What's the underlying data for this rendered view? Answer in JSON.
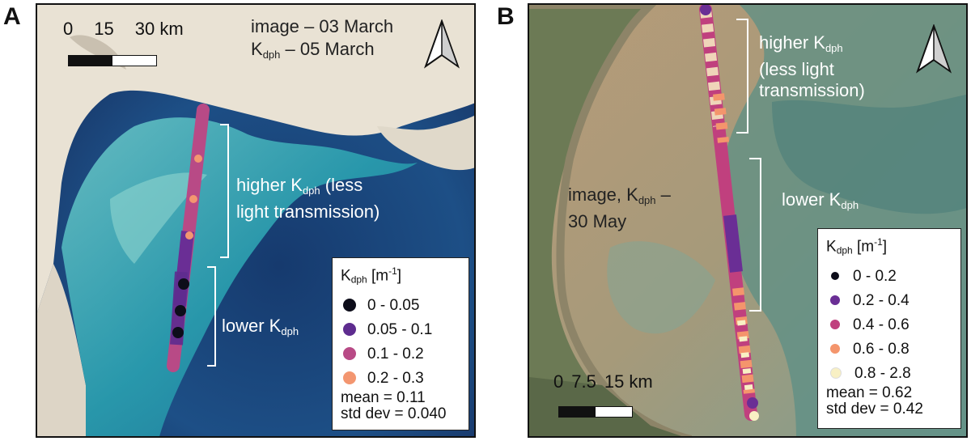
{
  "panels": [
    {
      "letter": "A",
      "scale": {
        "labels": [
          "0",
          "15",
          "30 km"
        ]
      },
      "date_line1": "image – 03 March",
      "date_line2_main": "K",
      "date_line2_sub": "dph",
      "date_line2_rest": " – 05 March",
      "higher_main": "higher K",
      "higher_sub": "dph",
      "higher_rest": " (less",
      "higher_line2": "light transmission)",
      "lower_main": "lower K",
      "lower_sub": "dph",
      "legend": {
        "title_main": "K",
        "title_sub": "dph",
        "title_unit": " [m",
        "title_exp": "-1",
        "title_close": "]",
        "items": [
          {
            "label": "0 - 0.05",
            "color": "#0d0d1a"
          },
          {
            "label": "0.05 - 0.1",
            "color": "#5e2c8f"
          },
          {
            "label": "0.1 - 0.2",
            "color": "#b84a86"
          },
          {
            "label": "0.2 - 0.3",
            "color": "#f39670"
          }
        ],
        "mean": "mean = 0.11",
        "std": "std dev = 0.040"
      }
    },
    {
      "letter": "B",
      "scale": {
        "labels": [
          "0",
          "7.5",
          "15 km"
        ]
      },
      "date_line1_main": "image, K",
      "date_line1_sub": "dph",
      "date_line1_rest": " –",
      "date_line2": "30 May",
      "higher_main": "higher K",
      "higher_sub": "dph",
      "higher_line2": "(less light",
      "higher_line3": "transmission)",
      "lower_main": "lower K",
      "lower_sub": "dph",
      "legend": {
        "title_main": "K",
        "title_sub": "dph",
        "title_unit": " [m",
        "title_exp": "-1",
        "title_close": "]",
        "items": [
          {
            "label": "0 - 0.2",
            "color": "#0d0d1a"
          },
          {
            "label": "0.2 - 0.4",
            "color": "#6a2e95"
          },
          {
            "label": "0.4 - 0.6",
            "color": "#c0407e"
          },
          {
            "label": "0.6 - 0.8",
            "color": "#f4956c"
          },
          {
            "label": "0.8 - 2.8",
            "color": "#f8f0c4"
          }
        ],
        "mean": "mean = 0.62",
        "std": "std dev = 0.42"
      }
    }
  ]
}
